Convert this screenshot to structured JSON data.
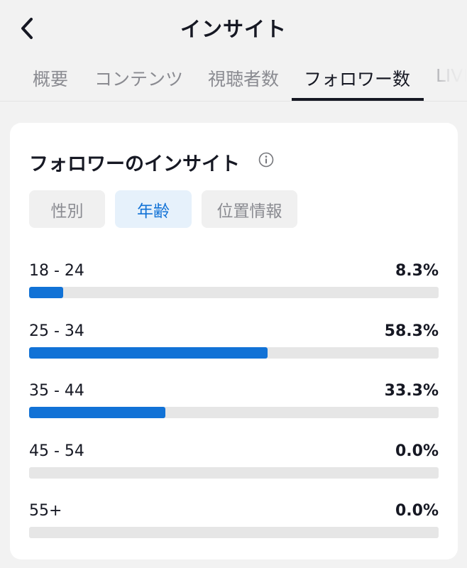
{
  "header": {
    "title": "インサイト",
    "back_icon": "chevron-left-icon"
  },
  "tabs": [
    {
      "label": "概要",
      "active": false
    },
    {
      "label": "コンテンツ",
      "active": false
    },
    {
      "label": "視聴者数",
      "active": false
    },
    {
      "label": "フォロワー数",
      "active": true
    },
    {
      "label": "LIVE",
      "active": false
    }
  ],
  "card": {
    "title": "フォロワーのインサイト",
    "info_icon": "info-icon",
    "segments": [
      {
        "label": "性別",
        "active": false
      },
      {
        "label": "年齢",
        "active": true
      },
      {
        "label": "位置情報",
        "active": false
      }
    ],
    "age_ranges": [
      {
        "label": "18 - 24",
        "percent_text": "8.3%",
        "percent": 8.3
      },
      {
        "label": "25 - 34",
        "percent_text": "58.3%",
        "percent": 58.3
      },
      {
        "label": "35 - 44",
        "percent_text": "33.3%",
        "percent": 33.3
      },
      {
        "label": "45 - 54",
        "percent_text": "0.0%",
        "percent": 0.0
      },
      {
        "label": "55+",
        "percent_text": "0.0%",
        "percent": 0.0
      }
    ]
  },
  "colors": {
    "accent": "#1172d6",
    "accent_bg": "#e6f1fb",
    "track": "#e6e6e6",
    "text": "#161823",
    "muted": "#8a8b91"
  }
}
